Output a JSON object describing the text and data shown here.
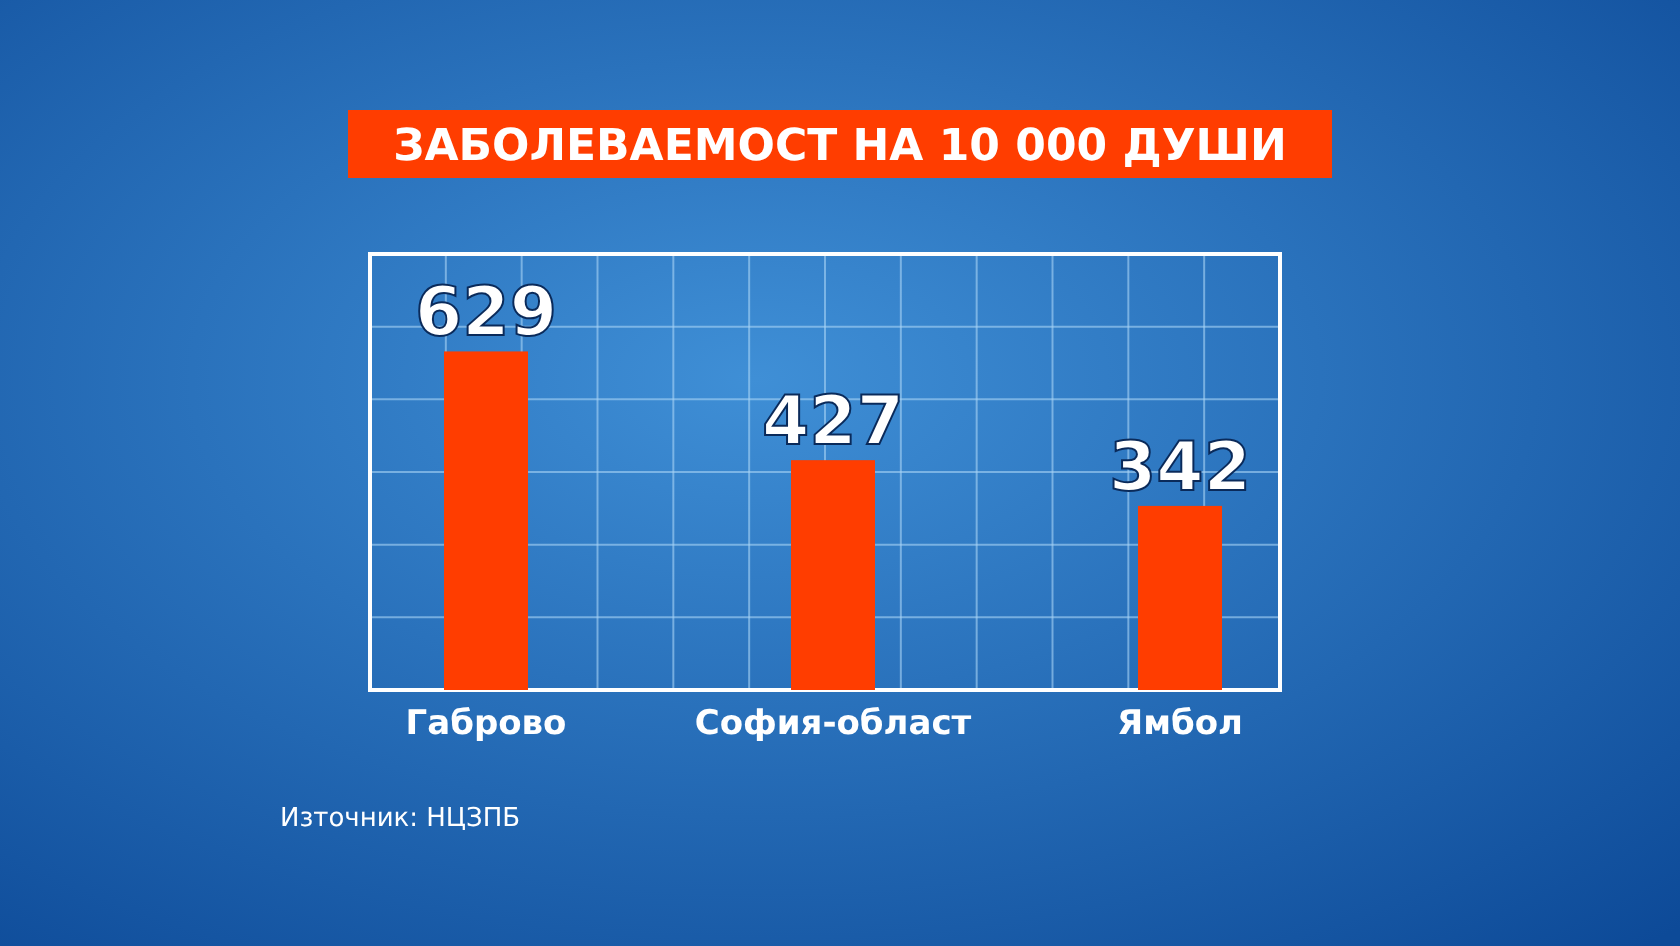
{
  "chart_data": {
    "type": "bar",
    "title": "ЗАБОЛЕВАЕМОСТ НА 10 000 ДУШИ",
    "categories": [
      "Габрово",
      "София-област",
      "Ямбол"
    ],
    "values": [
      629,
      427,
      342
    ],
    "color": "#ff3d00",
    "data_labels": true,
    "ylim": [
      0,
      810
    ],
    "yticks": [
      {
        "value": 0,
        "label": null
      },
      {
        "value": 135,
        "label": null
      },
      {
        "value": 270,
        "label": null
      },
      {
        "value": 405,
        "label": null
      },
      {
        "value": 540,
        "label": null
      },
      {
        "value": 675,
        "label": null
      },
      {
        "value": 810,
        "label": null
      }
    ],
    "grid": true,
    "tick_labels": "x",
    "annotations": [
      "Източник: НЦЗПБ"
    ]
  }
}
